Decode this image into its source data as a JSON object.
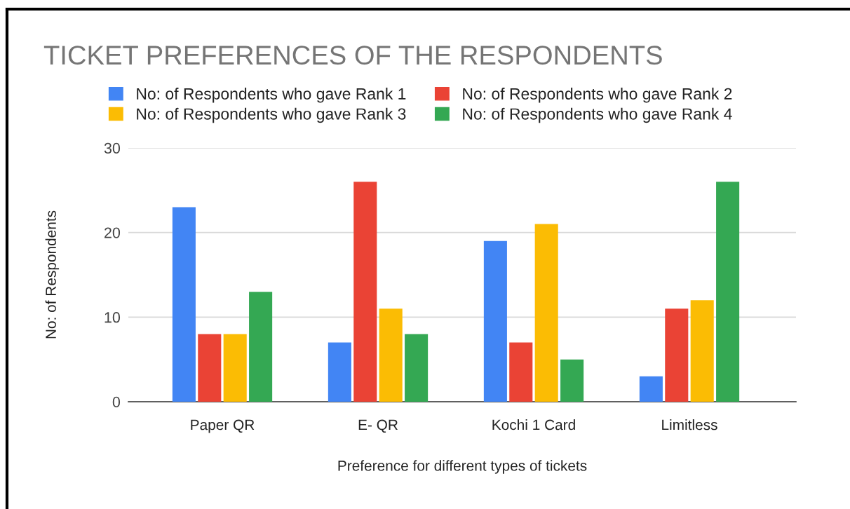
{
  "chart_data": {
    "type": "bar",
    "title": "TICKET PREFERENCES OF THE RESPONDENTS",
    "xlabel": "Preference for different types of tickets",
    "ylabel": "No: of Respondents",
    "categories": [
      "Paper QR",
      "E- QR",
      "Kochi 1 Card",
      "Limitless"
    ],
    "series": [
      {
        "name": "No: of Respondents who gave Rank 1",
        "color": "#4285f4",
        "values": [
          23,
          7,
          19,
          3
        ]
      },
      {
        "name": "No: of Respondents who gave Rank 2",
        "color": "#ea4335",
        "values": [
          8,
          26,
          7,
          11
        ]
      },
      {
        "name": "No: of Respondents who gave Rank 3",
        "color": "#fbbc04",
        "values": [
          8,
          11,
          21,
          12
        ]
      },
      {
        "name": "No: of Respondents who gave Rank 4",
        "color": "#34a853",
        "values": [
          13,
          8,
          5,
          26
        ]
      }
    ],
    "ylim": [
      0,
      30
    ],
    "yticks": [
      0,
      10,
      20,
      30
    ],
    "grid": "y",
    "legend": "top"
  }
}
